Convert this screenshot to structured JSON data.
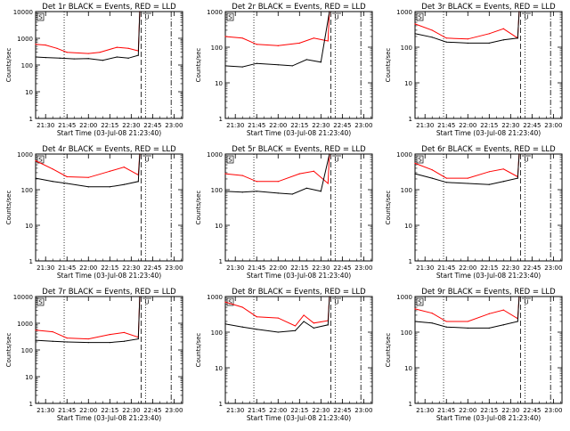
{
  "page": {
    "xlabel": "Start Time (03-Jul-08 21:23:40)",
    "ylabel": "Counts/sec"
  },
  "colors": {
    "events": "#000000",
    "lld": "#ff0000",
    "axes": "#000000"
  },
  "chart_data": [
    {
      "type": "line",
      "title": "Det 1r BLACK = Events, RED = LLD",
      "xlabel": "Start Time (03-Jul-08 21:23:40)",
      "ylabel": "Counts/sec",
      "x_ticks": [
        "21:30",
        "21:45",
        "22:00",
        "22:15",
        "22:30",
        "22:45",
        "23:00"
      ],
      "y_ticks": [
        "1",
        "10",
        "100",
        "1000",
        "10000"
      ],
      "y_scale": "log",
      "ylim": [
        1,
        10000
      ],
      "markers": {
        "s_label": "S",
        "u_label": "U"
      },
      "series": [
        {
          "color": "#ff0000",
          "points": [
            [
              "21:23",
              600
            ],
            [
              "21:30",
              560
            ],
            [
              "21:38",
              420
            ],
            [
              "21:45",
              300
            ],
            [
              "22:00",
              270
            ],
            [
              "22:08",
              300
            ],
            [
              "22:20",
              460
            ],
            [
              "22:28",
              420
            ],
            [
              "22:35",
              340
            ],
            [
              "22:36",
              10000
            ]
          ]
        },
        {
          "color": "#000000",
          "points": [
            [
              "21:23",
              200
            ],
            [
              "21:30",
              190
            ],
            [
              "21:40",
              180
            ],
            [
              "21:50",
              170
            ],
            [
              "22:00",
              175
            ],
            [
              "22:10",
              150
            ],
            [
              "22:20",
              200
            ],
            [
              "22:28",
              180
            ],
            [
              "22:35",
              230
            ],
            [
              "22:36",
              10000
            ]
          ]
        }
      ]
    },
    {
      "type": "line",
      "title": "Det 2r BLACK = Events, RED = LLD",
      "xlabel": "Start Time (03-Jul-08 21:23:40)",
      "ylabel": "Counts/sec",
      "x_ticks": [
        "21:30",
        "21:45",
        "22:00",
        "22:15",
        "22:30",
        "22:45",
        "23:00"
      ],
      "y_ticks": [
        "1",
        "10",
        "100",
        "1000"
      ],
      "y_scale": "log",
      "ylim": [
        1,
        1000
      ],
      "markers": {
        "s_label": "S",
        "u_label": "U"
      },
      "series": [
        {
          "color": "#ff0000",
          "points": [
            [
              "21:23",
              200
            ],
            [
              "21:35",
              180
            ],
            [
              "21:45",
              120
            ],
            [
              "22:00",
              110
            ],
            [
              "22:15",
              130
            ],
            [
              "22:25",
              180
            ],
            [
              "22:35",
              150
            ],
            [
              "22:36",
              1000
            ]
          ]
        },
        {
          "color": "#000000",
          "points": [
            [
              "21:23",
              30
            ],
            [
              "21:35",
              28
            ],
            [
              "21:45",
              35
            ],
            [
              "22:00",
              32
            ],
            [
              "22:10",
              30
            ],
            [
              "22:20",
              45
            ],
            [
              "22:30",
              38
            ],
            [
              "22:36",
              1000
            ]
          ]
        }
      ]
    },
    {
      "type": "line",
      "title": "Det 3r BLACK = Events, RED = LLD",
      "xlabel": "Start Time (03-Jul-08 21:23:40)",
      "ylabel": "Counts/sec",
      "x_ticks": [
        "21:30",
        "21:45",
        "22:00",
        "22:15",
        "22:30",
        "22:45",
        "23:00"
      ],
      "y_ticks": [
        "1",
        "10",
        "100",
        "1000"
      ],
      "y_scale": "log",
      "ylim": [
        1,
        1000
      ],
      "markers": {
        "s_label": "S",
        "u_label": "U"
      },
      "series": [
        {
          "color": "#ff0000",
          "points": [
            [
              "21:23",
              450
            ],
            [
              "21:35",
              300
            ],
            [
              "21:45",
              180
            ],
            [
              "22:00",
              170
            ],
            [
              "22:15",
              240
            ],
            [
              "22:25",
              330
            ],
            [
              "22:35",
              180
            ],
            [
              "22:36",
              1000
            ]
          ]
        },
        {
          "color": "#000000",
          "points": [
            [
              "21:23",
              240
            ],
            [
              "21:35",
              190
            ],
            [
              "21:45",
              140
            ],
            [
              "22:00",
              130
            ],
            [
              "22:15",
              130
            ],
            [
              "22:25",
              160
            ],
            [
              "22:35",
              180
            ],
            [
              "22:36",
              1000
            ]
          ]
        }
      ]
    },
    {
      "type": "line",
      "title": "Det 4r BLACK = Events, RED = LLD",
      "xlabel": "Start Time (03-Jul-08 21:23:40)",
      "ylabel": "Counts/sec",
      "x_ticks": [
        "21:30",
        "21:45",
        "22:00",
        "22:15",
        "22:30",
        "22:45",
        "23:00"
      ],
      "y_ticks": [
        "1",
        "10",
        "100",
        "1000"
      ],
      "y_scale": "log",
      "ylim": [
        1,
        1000
      ],
      "markers": {
        "s_label": "S",
        "u_label": "U"
      },
      "series": [
        {
          "color": "#ff0000",
          "points": [
            [
              "21:23",
              650
            ],
            [
              "21:35",
              380
            ],
            [
              "21:45",
              230
            ],
            [
              "22:00",
              220
            ],
            [
              "22:15",
              330
            ],
            [
              "22:25",
              430
            ],
            [
              "22:35",
              260
            ],
            [
              "22:36",
              1000
            ]
          ]
        },
        {
          "color": "#000000",
          "points": [
            [
              "21:23",
              210
            ],
            [
              "21:35",
              170
            ],
            [
              "21:45",
              150
            ],
            [
              "22:00",
              120
            ],
            [
              "22:15",
              120
            ],
            [
              "22:25",
              140
            ],
            [
              "22:35",
              170
            ],
            [
              "22:36",
              1000
            ]
          ]
        }
      ]
    },
    {
      "type": "line",
      "title": "Det 5r BLACK = Events, RED = LLD",
      "xlabel": "Start Time (03-Jul-08 21:23:40)",
      "ylabel": "Counts/sec",
      "x_ticks": [
        "21:30",
        "21:45",
        "22:00",
        "22:15",
        "22:30",
        "22:45",
        "23:00"
      ],
      "y_ticks": [
        "1",
        "10",
        "100",
        "1000"
      ],
      "y_scale": "log",
      "ylim": [
        1,
        1000
      ],
      "markers": {
        "s_label": "S",
        "u_label": "U"
      },
      "series": [
        {
          "color": "#ff0000",
          "points": [
            [
              "21:23",
              280
            ],
            [
              "21:35",
              250
            ],
            [
              "21:45",
              170
            ],
            [
              "22:00",
              170
            ],
            [
              "22:15",
              280
            ],
            [
              "22:25",
              330
            ],
            [
              "22:35",
              150
            ],
            [
              "22:36",
              1000
            ]
          ]
        },
        {
          "color": "#000000",
          "points": [
            [
              "21:23",
              90
            ],
            [
              "21:35",
              85
            ],
            [
              "21:45",
              90
            ],
            [
              "22:00",
              80
            ],
            [
              "22:10",
              75
            ],
            [
              "22:20",
              110
            ],
            [
              "22:30",
              90
            ],
            [
              "22:36",
              1000
            ]
          ]
        }
      ]
    },
    {
      "type": "line",
      "title": "Det 6r BLACK = Events, RED = LLD",
      "xlabel": "Start Time (03-Jul-08 21:23:40)",
      "ylabel": "Counts/sec",
      "x_ticks": [
        "21:30",
        "21:45",
        "22:00",
        "22:15",
        "22:30",
        "22:45",
        "23:00"
      ],
      "y_ticks": [
        "1",
        "10",
        "100",
        "1000"
      ],
      "y_scale": "log",
      "ylim": [
        1,
        1000
      ],
      "markers": {
        "s_label": "S",
        "u_label": "U"
      },
      "series": [
        {
          "color": "#ff0000",
          "points": [
            [
              "21:23",
              550
            ],
            [
              "21:35",
              360
            ],
            [
              "21:45",
              210
            ],
            [
              "22:00",
              210
            ],
            [
              "22:15",
              320
            ],
            [
              "22:25",
              380
            ],
            [
              "22:35",
              230
            ],
            [
              "22:36",
              1000
            ]
          ]
        },
        {
          "color": "#000000",
          "points": [
            [
              "21:23",
              280
            ],
            [
              "21:35",
              210
            ],
            [
              "21:45",
              160
            ],
            [
              "22:00",
              150
            ],
            [
              "22:15",
              140
            ],
            [
              "22:25",
              170
            ],
            [
              "22:35",
              210
            ],
            [
              "22:36",
              1000
            ]
          ]
        }
      ]
    },
    {
      "type": "line",
      "title": "Det 7r BLACK = Events, RED = LLD",
      "xlabel": "Start Time (03-Jul-08 21:23:40)",
      "ylabel": "Counts/sec",
      "x_ticks": [
        "21:30",
        "21:45",
        "22:00",
        "22:15",
        "22:30",
        "22:45",
        "23:00"
      ],
      "y_ticks": [
        "1",
        "10",
        "100",
        "1000",
        "10000"
      ],
      "y_scale": "log",
      "ylim": [
        1,
        10000
      ],
      "markers": {
        "s_label": "S",
        "u_label": "U"
      },
      "series": [
        {
          "color": "#ff0000",
          "points": [
            [
              "21:23",
              550
            ],
            [
              "21:35",
              480
            ],
            [
              "21:45",
              280
            ],
            [
              "22:00",
              260
            ],
            [
              "22:15",
              380
            ],
            [
              "22:25",
              450
            ],
            [
              "22:35",
              300
            ],
            [
              "22:36",
              10000
            ]
          ]
        },
        {
          "color": "#000000",
          "points": [
            [
              "21:23",
              230
            ],
            [
              "21:35",
              210
            ],
            [
              "21:45",
              200
            ],
            [
              "22:00",
              190
            ],
            [
              "22:15",
              190
            ],
            [
              "22:25",
              210
            ],
            [
              "22:35",
              260
            ],
            [
              "22:36",
              10000
            ]
          ]
        }
      ]
    },
    {
      "type": "line",
      "title": "Det 8r BLACK = Events, RED = LLD",
      "xlabel": "Start Time (03-Jul-08 21:23:40)",
      "ylabel": "Counts/sec",
      "x_ticks": [
        "21:30",
        "21:45",
        "22:00",
        "22:15",
        "22:30",
        "22:45",
        "23:00"
      ],
      "y_ticks": [
        "1",
        "10",
        "100",
        "1000"
      ],
      "y_scale": "log",
      "ylim": [
        1,
        1000
      ],
      "markers": {
        "s_label": "S",
        "u_label": "U"
      },
      "series": [
        {
          "color": "#ff0000",
          "points": [
            [
              "21:23",
              700
            ],
            [
              "21:35",
              500
            ],
            [
              "21:45",
              270
            ],
            [
              "22:00",
              250
            ],
            [
              "22:12",
              150
            ],
            [
              "22:18",
              300
            ],
            [
              "22:25",
              180
            ],
            [
              "22:35",
              210
            ],
            [
              "22:36",
              1000
            ]
          ]
        },
        {
          "color": "#000000",
          "points": [
            [
              "21:23",
              170
            ],
            [
              "21:35",
              140
            ],
            [
              "21:45",
              120
            ],
            [
              "22:00",
              100
            ],
            [
              "22:12",
              110
            ],
            [
              "22:18",
              200
            ],
            [
              "22:25",
              130
            ],
            [
              "22:35",
              160
            ],
            [
              "22:36",
              1000
            ]
          ]
        }
      ]
    },
    {
      "type": "line",
      "title": "Det 9r BLACK = Events, RED = LLD",
      "xlabel": "Start Time (03-Jul-08 21:23:40)",
      "ylabel": "Counts/sec",
      "x_ticks": [
        "21:30",
        "21:45",
        "22:00",
        "22:15",
        "22:30",
        "22:45",
        "23:00"
      ],
      "y_ticks": [
        "1",
        "10",
        "100",
        "1000"
      ],
      "y_scale": "log",
      "ylim": [
        1,
        1000
      ],
      "markers": {
        "s_label": "S",
        "u_label": "U"
      },
      "series": [
        {
          "color": "#ff0000",
          "points": [
            [
              "21:23",
              450
            ],
            [
              "21:35",
              340
            ],
            [
              "21:45",
              200
            ],
            [
              "22:00",
              200
            ],
            [
              "22:15",
              330
            ],
            [
              "22:25",
              420
            ],
            [
              "22:35",
              240
            ],
            [
              "22:36",
              1000
            ]
          ]
        },
        {
          "color": "#000000",
          "points": [
            [
              "21:23",
              200
            ],
            [
              "21:35",
              180
            ],
            [
              "21:45",
              140
            ],
            [
              "22:00",
              130
            ],
            [
              "22:15",
              130
            ],
            [
              "22:25",
              160
            ],
            [
              "22:35",
              200
            ],
            [
              "22:36",
              1000
            ]
          ]
        }
      ]
    }
  ]
}
